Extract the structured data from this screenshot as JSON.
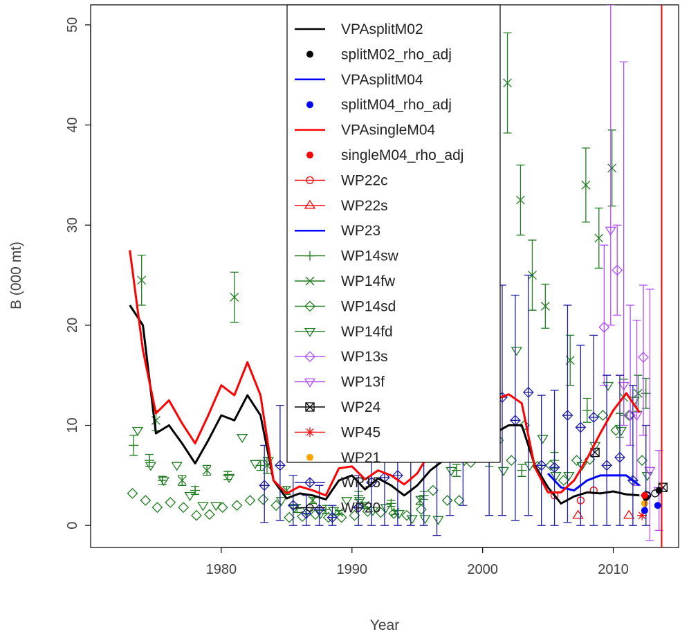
{
  "chart_data": {
    "type": "line",
    "xlabel": "Year",
    "ylabel": "B (000 mt)",
    "xlim": [
      1970,
      2015
    ],
    "ylim": [
      -2.2,
      52
    ],
    "xticks": [
      1980,
      1990,
      2000,
      2010
    ],
    "yticks": [
      0,
      10,
      20,
      30,
      40,
      50
    ],
    "legend_position": "top-center",
    "lines": [
      {
        "name": "VPAsplitM02",
        "color": "#000000",
        "x": [
          1973,
          1974,
          1975,
          1976,
          1977,
          1978,
          1979,
          1980,
          1981,
          1982,
          1983,
          1984,
          1985,
          1986,
          1987,
          1988,
          1989,
          1990,
          1991,
          1992,
          1993,
          1994,
          1995,
          1996,
          1997,
          1998,
          1999,
          2000,
          2001,
          2002,
          2003,
          2004,
          2005,
          2006,
          2007,
          2008,
          2009,
          2010,
          2011,
          2012
        ],
        "y": [
          22,
          20,
          9.2,
          10,
          8.2,
          6.2,
          8.5,
          11,
          10.5,
          13,
          11,
          4.5,
          2.7,
          3.2,
          3,
          2.6,
          4.5,
          5,
          3.6,
          4.7,
          4,
          3,
          4,
          5.5,
          6.5,
          7.4,
          9.6,
          10.5,
          9.3,
          10,
          10,
          6,
          3.8,
          2.2,
          2.9,
          3.3,
          3.2,
          3.4,
          3.1,
          3
        ]
      },
      {
        "name": "VPAsplitM04",
        "color": "#0000ff",
        "x": [
          2005,
          2006,
          2007,
          2008,
          2009,
          2010,
          2011,
          2012
        ],
        "y": [
          5.2,
          3.8,
          3.5,
          4.5,
          5,
          5,
          5,
          4
        ]
      },
      {
        "name": "VPAsingleM04",
        "color": "#ff0000",
        "x": [
          1973,
          1974,
          1975,
          1976,
          1977,
          1978,
          1979,
          1980,
          1981,
          1982,
          1983,
          1984,
          1985,
          1986,
          1987,
          1988,
          1989,
          1990,
          1991,
          1992,
          1993,
          1994,
          1995,
          1996,
          1997,
          1998,
          1999,
          2000,
          2001,
          2002,
          2003,
          2004,
          2005,
          2006,
          2007,
          2008,
          2009,
          2010,
          2011,
          2012
        ],
        "y": [
          27.5,
          17.5,
          11.2,
          12.5,
          10.2,
          8.2,
          11,
          14,
          13,
          16.3,
          13,
          4.5,
          3.2,
          3.9,
          3.5,
          3,
          5.7,
          5.9,
          4.6,
          5.5,
          5,
          4.1,
          5.2,
          7.4,
          9,
          9.8,
          12.8,
          13.5,
          12.6,
          13.1,
          12.2,
          5.8,
          3.3,
          3.3,
          4.5,
          6.7,
          9.2,
          11.5,
          13.2,
          11.3
        ]
      }
    ],
    "vertical_lines": [
      {
        "name": "VPAsingleM04",
        "color": "#ff0000",
        "x": 2013.7
      }
    ],
    "points": [
      {
        "name": "splitM02_rho_adj",
        "color": "#000000",
        "x": [
          2012.5,
          2013.5
        ],
        "y": [
          2.8,
          3.5
        ]
      },
      {
        "name": "splitM04_rho_adj",
        "color": "#0000ff",
        "x": [
          2012.4,
          2013.4
        ],
        "y": [
          1.5,
          2
        ]
      },
      {
        "name": "singleM04_rho_adj",
        "color": "#ff0000",
        "x": [
          2012.4
        ],
        "y": [
          3
        ]
      }
    ],
    "index_series": [
      {
        "name": "WP22c",
        "color": "#ff0000",
        "marker": "circle",
        "x": [
          2005.5,
          2007.5,
          2008.5
        ],
        "y": [
          3,
          2.5,
          3.5
        ]
      },
      {
        "name": "WP22s",
        "color": "#ff0000",
        "marker": "triangle-up",
        "x": [
          2007.3,
          2011.2
        ],
        "y": [
          1,
          1
        ]
      },
      {
        "name": "WP23",
        "color": "#0000ff",
        "marker": "none",
        "x": [],
        "y": []
      },
      {
        "name": "WP14sw",
        "color": "#1e7d1e",
        "marker": "plus",
        "x": [
          1973.3,
          1974.5,
          1975.5,
          1978,
          1980.5,
          1983,
          1985.8,
          1988,
          1990.5,
          1993,
          1995.5,
          1998,
          2000.5,
          2003,
          2005.5,
          2008,
          2010.5,
          2012.5
        ],
        "y": [
          8,
          6.5,
          4.5,
          3.5,
          5,
          6,
          1.7,
          1.6,
          3,
          2.2,
          3,
          5.5,
          6.5,
          5.5,
          6.5,
          11.5,
          10,
          13.2
        ],
        "err": [
          1,
          0.6,
          0.4,
          0.4,
          0.4,
          0.5,
          0.4,
          0.4,
          0.4,
          0.3,
          0.4,
          0.6,
          0.6,
          0.6,
          0.8,
          1.2,
          1.2,
          1.5
        ]
      },
      {
        "name": "WP14fw",
        "color": "#1e7d1e",
        "marker": "x",
        "x": [
          1973.9,
          1975,
          1977,
          1978.9,
          1981,
          1983.5,
          1985,
          1987,
          1989,
          1991,
          1993.3,
          1995.2,
          1997.5,
          1999,
          2000,
          2001.9,
          2002.9,
          2003.8,
          2004.8,
          2006.7,
          2007.9,
          2008.9,
          2009.9,
          2010.8,
          2011.9
        ],
        "y": [
          24.5,
          10.5,
          4.5,
          5.5,
          22.8,
          6,
          3.5,
          2.5,
          1.3,
          2,
          1.3,
          2.5,
          14,
          16.5,
          29.5,
          44.2,
          32.5,
          25,
          21.9,
          16.5,
          34,
          28.7,
          35.7,
          12.8,
          13.2
        ],
        "err": [
          2.5,
          1,
          0.5,
          0.5,
          2.5,
          0.8,
          0.4,
          0.3,
          0.2,
          0.3,
          0.2,
          0.4,
          2,
          2,
          3,
          5,
          3.5,
          3.5,
          2.2,
          2.5,
          3.7,
          3,
          3.8,
          1.8,
          1.8
        ]
      },
      {
        "name": "WP14sd",
        "color": "#1e7d1e",
        "marker": "diamond",
        "x": [
          1973.2,
          1974.2,
          1975.1,
          1976.1,
          1977.1,
          1978.1,
          1979.1,
          1980.1,
          1981.2,
          1982.2,
          1983.2,
          1984.2,
          1985.2,
          1986.2,
          1987.2,
          1988.2,
          1989.2,
          1990.2,
          1991.2,
          1992.2,
          1993.2,
          1994.2,
          1995.3,
          1996.2,
          1997.3,
          1998.2,
          1999.1,
          2000.2,
          2001.2,
          2002.2,
          2003.2,
          2004.2,
          2005.2,
          2006.2,
          2007.2,
          2008.2,
          2009.2,
          2010.2,
          2011.2,
          2012.2
        ],
        "y": [
          3.2,
          2.5,
          1.8,
          2.3,
          1.8,
          1,
          1.1,
          1.8,
          2,
          2.5,
          2.6,
          2,
          0.8,
          0.9,
          1.1,
          0.8,
          0.8,
          1,
          1.4,
          1.3,
          1.2,
          1,
          1.6,
          3.5,
          2.5,
          2.5,
          6.3,
          11,
          8.5,
          6.5,
          10,
          5.9,
          6,
          4.5,
          6.5,
          6.6,
          11,
          9.5,
          11,
          6.5
        ]
      },
      {
        "name": "WP14fd",
        "color": "#1e7d1e",
        "marker": "triangle-down",
        "x": [
          1973.6,
          1974.6,
          1975.6,
          1976.6,
          1977.6,
          1978.6,
          1979.6,
          1980.6,
          1981.6,
          1982.6,
          1983.6,
          1984.6,
          1985.6,
          1986.6,
          1987.6,
          1988.6,
          1989.6,
          1990.6,
          1991.6,
          1992.6,
          1993.6,
          1994.6,
          1995.6,
          1996.6,
          1997.6,
          1998.6,
          1999.6,
          2000.6,
          2001.6,
          2002.6,
          2003.6,
          2004.6,
          2005.6,
          2006.6,
          2007.6,
          2008.6,
          2009.6,
          2010.6,
          2011.6,
          2012.6
        ],
        "y": [
          9.5,
          6,
          4.5,
          6,
          3,
          2,
          2,
          4.8,
          8.8,
          6.2,
          6.5,
          2.5,
          1.8,
          1.5,
          1.2,
          1.5,
          2.5,
          2.5,
          1.5,
          1.8,
          1.2,
          0.7,
          0.7,
          0.6,
          5.5,
          6.5,
          11.5,
          8,
          5.5,
          17.5,
          6,
          8.7,
          5,
          5,
          6,
          8,
          14,
          9.5,
          12.5,
          5
        ]
      },
      {
        "name": "WP13s",
        "color": "#b14cff",
        "marker": "diamond",
        "x": [
          2009.3,
          2010.3,
          2011.3,
          2012.3
        ],
        "y": [
          19.8,
          25.5,
          11,
          16.8
        ],
        "lo": [
          14,
          21,
          8,
          9
        ],
        "hi": [
          28,
          30,
          22,
          24
        ]
      },
      {
        "name": "WP13f",
        "color": "#b14cff",
        "marker": "triangle-down",
        "x": [
          2009.8,
          2010.8,
          2011.8,
          2012.8,
          2013.5
        ],
        "y": [
          29.5,
          14,
          11,
          5.5,
          3.5
        ],
        "lo": [
          20,
          10,
          4,
          -1.5,
          -0.5
        ],
        "hi": [
          52,
          46.3,
          20.5,
          23.6,
          7.5
        ]
      },
      {
        "name": "WP24",
        "color": "#000000",
        "marker": "boxx",
        "x": [
          2008.6,
          2013.8
        ],
        "y": [
          7.3,
          3.8
        ]
      },
      {
        "name": "WP45",
        "color": "#ff0000",
        "marker": "asterisk",
        "x": [
          2012.2
        ],
        "y": [
          1
        ]
      },
      {
        "name": "WP21",
        "color": "#ffa500",
        "marker": "dot",
        "x": [
          2012.4
        ],
        "y": [
          2.2
        ]
      },
      {
        "name": "WP15",
        "color": "#1f1fa8",
        "marker": "diamond-plus",
        "x": [
          1983.3,
          1984.5,
          1985.5,
          1986.5,
          1987.5,
          1988.5,
          1990.5,
          1991.5,
          1992.5,
          1993.5,
          1994.5,
          1995.5,
          1996.5,
          1997.5,
          1998.5,
          2000.5,
          2001.5,
          2002.5,
          2003.5,
          2004.5,
          2005.5,
          2006.5,
          2007.5,
          2008.5,
          2009.5,
          2010.5,
          2011.5,
          2012.5
        ],
        "y": [
          4,
          6,
          2,
          1.2,
          1.6,
          0.8,
          1.8,
          4.3,
          4.8,
          5,
          6.8,
          7.6,
          8,
          11.7,
          17.7,
          21,
          12.8,
          10.5,
          13.3,
          6,
          5.8,
          11,
          9.8,
          10.8,
          6,
          6.8,
          4.5,
          3
        ],
        "lo": [
          0.3,
          0.5,
          0,
          0,
          0,
          0,
          0,
          0,
          0,
          0,
          0,
          0,
          -1,
          1,
          2,
          1,
          1,
          0.5,
          1,
          0,
          0,
          0.3,
          0,
          0,
          0,
          0,
          0,
          0
        ],
        "hi": [
          8,
          12,
          5,
          3,
          4,
          2,
          5,
          8,
          9.5,
          11,
          13,
          14,
          17,
          22,
          33,
          41,
          24,
          23,
          25,
          13,
          13.5,
          22,
          18,
          19,
          15,
          15,
          14,
          10
        ]
      },
      {
        "name": "WP20",
        "color": "#000000",
        "marker": "circle",
        "x": [
          2012.6,
          2013.2
        ],
        "y": [
          3,
          3.2
        ]
      }
    ]
  },
  "legend": {
    "entries": [
      {
        "label": "VPAsplitM02",
        "color": "#000000",
        "type": "line"
      },
      {
        "label": "splitM02_rho_adj",
        "color": "#000000",
        "type": "dot"
      },
      {
        "label": "VPAsplitM04",
        "color": "#0000ff",
        "type": "line"
      },
      {
        "label": "splitM04_rho_adj",
        "color": "#0000ff",
        "type": "dot"
      },
      {
        "label": "VPAsingleM04",
        "color": "#ff0000",
        "type": "line"
      },
      {
        "label": "singleM04_rho_adj",
        "color": "#ff0000",
        "type": "dot"
      },
      {
        "label": "WP22c",
        "color": "#ff0000",
        "type": "line-circle"
      },
      {
        "label": "WP22s",
        "color": "#ff0000",
        "type": "line-triangle-up"
      },
      {
        "label": "WP23",
        "color": "#0000ff",
        "type": "line"
      },
      {
        "label": "WP14sw",
        "color": "#1e7d1e",
        "type": "line-plus"
      },
      {
        "label": "WP14fw",
        "color": "#1e7d1e",
        "type": "line-x"
      },
      {
        "label": "WP14sd",
        "color": "#1e7d1e",
        "type": "line-diamond"
      },
      {
        "label": "WP14fd",
        "color": "#1e7d1e",
        "type": "line-triangle-down"
      },
      {
        "label": "WP13s",
        "color": "#b14cff",
        "type": "line-diamond"
      },
      {
        "label": "WP13f",
        "color": "#b14cff",
        "type": "line-triangle-down"
      },
      {
        "label": "WP24",
        "color": "#000000",
        "type": "line-boxx"
      },
      {
        "label": "WP45",
        "color": "#ff0000",
        "type": "line-asterisk"
      },
      {
        "label": "WP21",
        "color": "#ffa500",
        "type": "dot"
      },
      {
        "label": "WP15",
        "color": "#1f1fa8",
        "type": "line-diamond-plus"
      },
      {
        "label": "WP20",
        "color": "#000000",
        "type": "line-circle"
      }
    ]
  }
}
